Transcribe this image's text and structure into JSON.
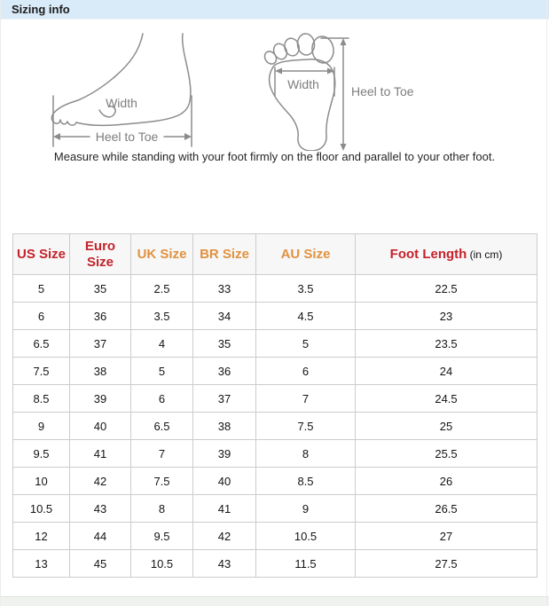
{
  "header": {
    "title": "Sizing info"
  },
  "diagram": {
    "side_view": {
      "width_label": "Width",
      "length_label": "Heel to Toe"
    },
    "bottom_view": {
      "width_label": "Width",
      "length_label": "Heel to Toe"
    },
    "caption": "Measure while standing with your foot firmly on the floor and parallel to your other foot."
  },
  "size_table": {
    "columns": [
      {
        "label": "US Size",
        "color": "#c5222b"
      },
      {
        "label": "Euro Size",
        "color": "#c5222b"
      },
      {
        "label": "UK Size",
        "color": "#e0923f"
      },
      {
        "label": "BR Size",
        "color": "#e0923f"
      },
      {
        "label": "AU Size",
        "color": "#e0923f"
      },
      {
        "label": "Foot Length",
        "suffix": "(in cm)",
        "color": "#c5222b"
      }
    ],
    "rows": [
      [
        "5",
        "35",
        "2.5",
        "33",
        "3.5",
        "22.5"
      ],
      [
        "6",
        "36",
        "3.5",
        "34",
        "4.5",
        "23"
      ],
      [
        "6.5",
        "37",
        "4",
        "35",
        "5",
        "23.5"
      ],
      [
        "7.5",
        "38",
        "5",
        "36",
        "6",
        "24"
      ],
      [
        "8.5",
        "39",
        "6",
        "37",
        "7",
        "24.5"
      ],
      [
        "9",
        "40",
        "6.5",
        "38",
        "7.5",
        "25"
      ],
      [
        "9.5",
        "41",
        "7",
        "39",
        "8",
        "25.5"
      ],
      [
        "10",
        "42",
        "7.5",
        "40",
        "8.5",
        "26"
      ],
      [
        "10.5",
        "43",
        "8",
        "41",
        "9",
        "26.5"
      ],
      [
        "12",
        "44",
        "9.5",
        "42",
        "10.5",
        "27"
      ],
      [
        "13",
        "45",
        "10.5",
        "43",
        "11.5",
        "27.5"
      ]
    ]
  },
  "colors": {
    "titlebar_bg": "#d9eaf8",
    "accent_red": "#c5222b",
    "accent_orange": "#e0923f",
    "table_border": "#cccccc",
    "diagram_stroke": "#8c8c8c"
  }
}
